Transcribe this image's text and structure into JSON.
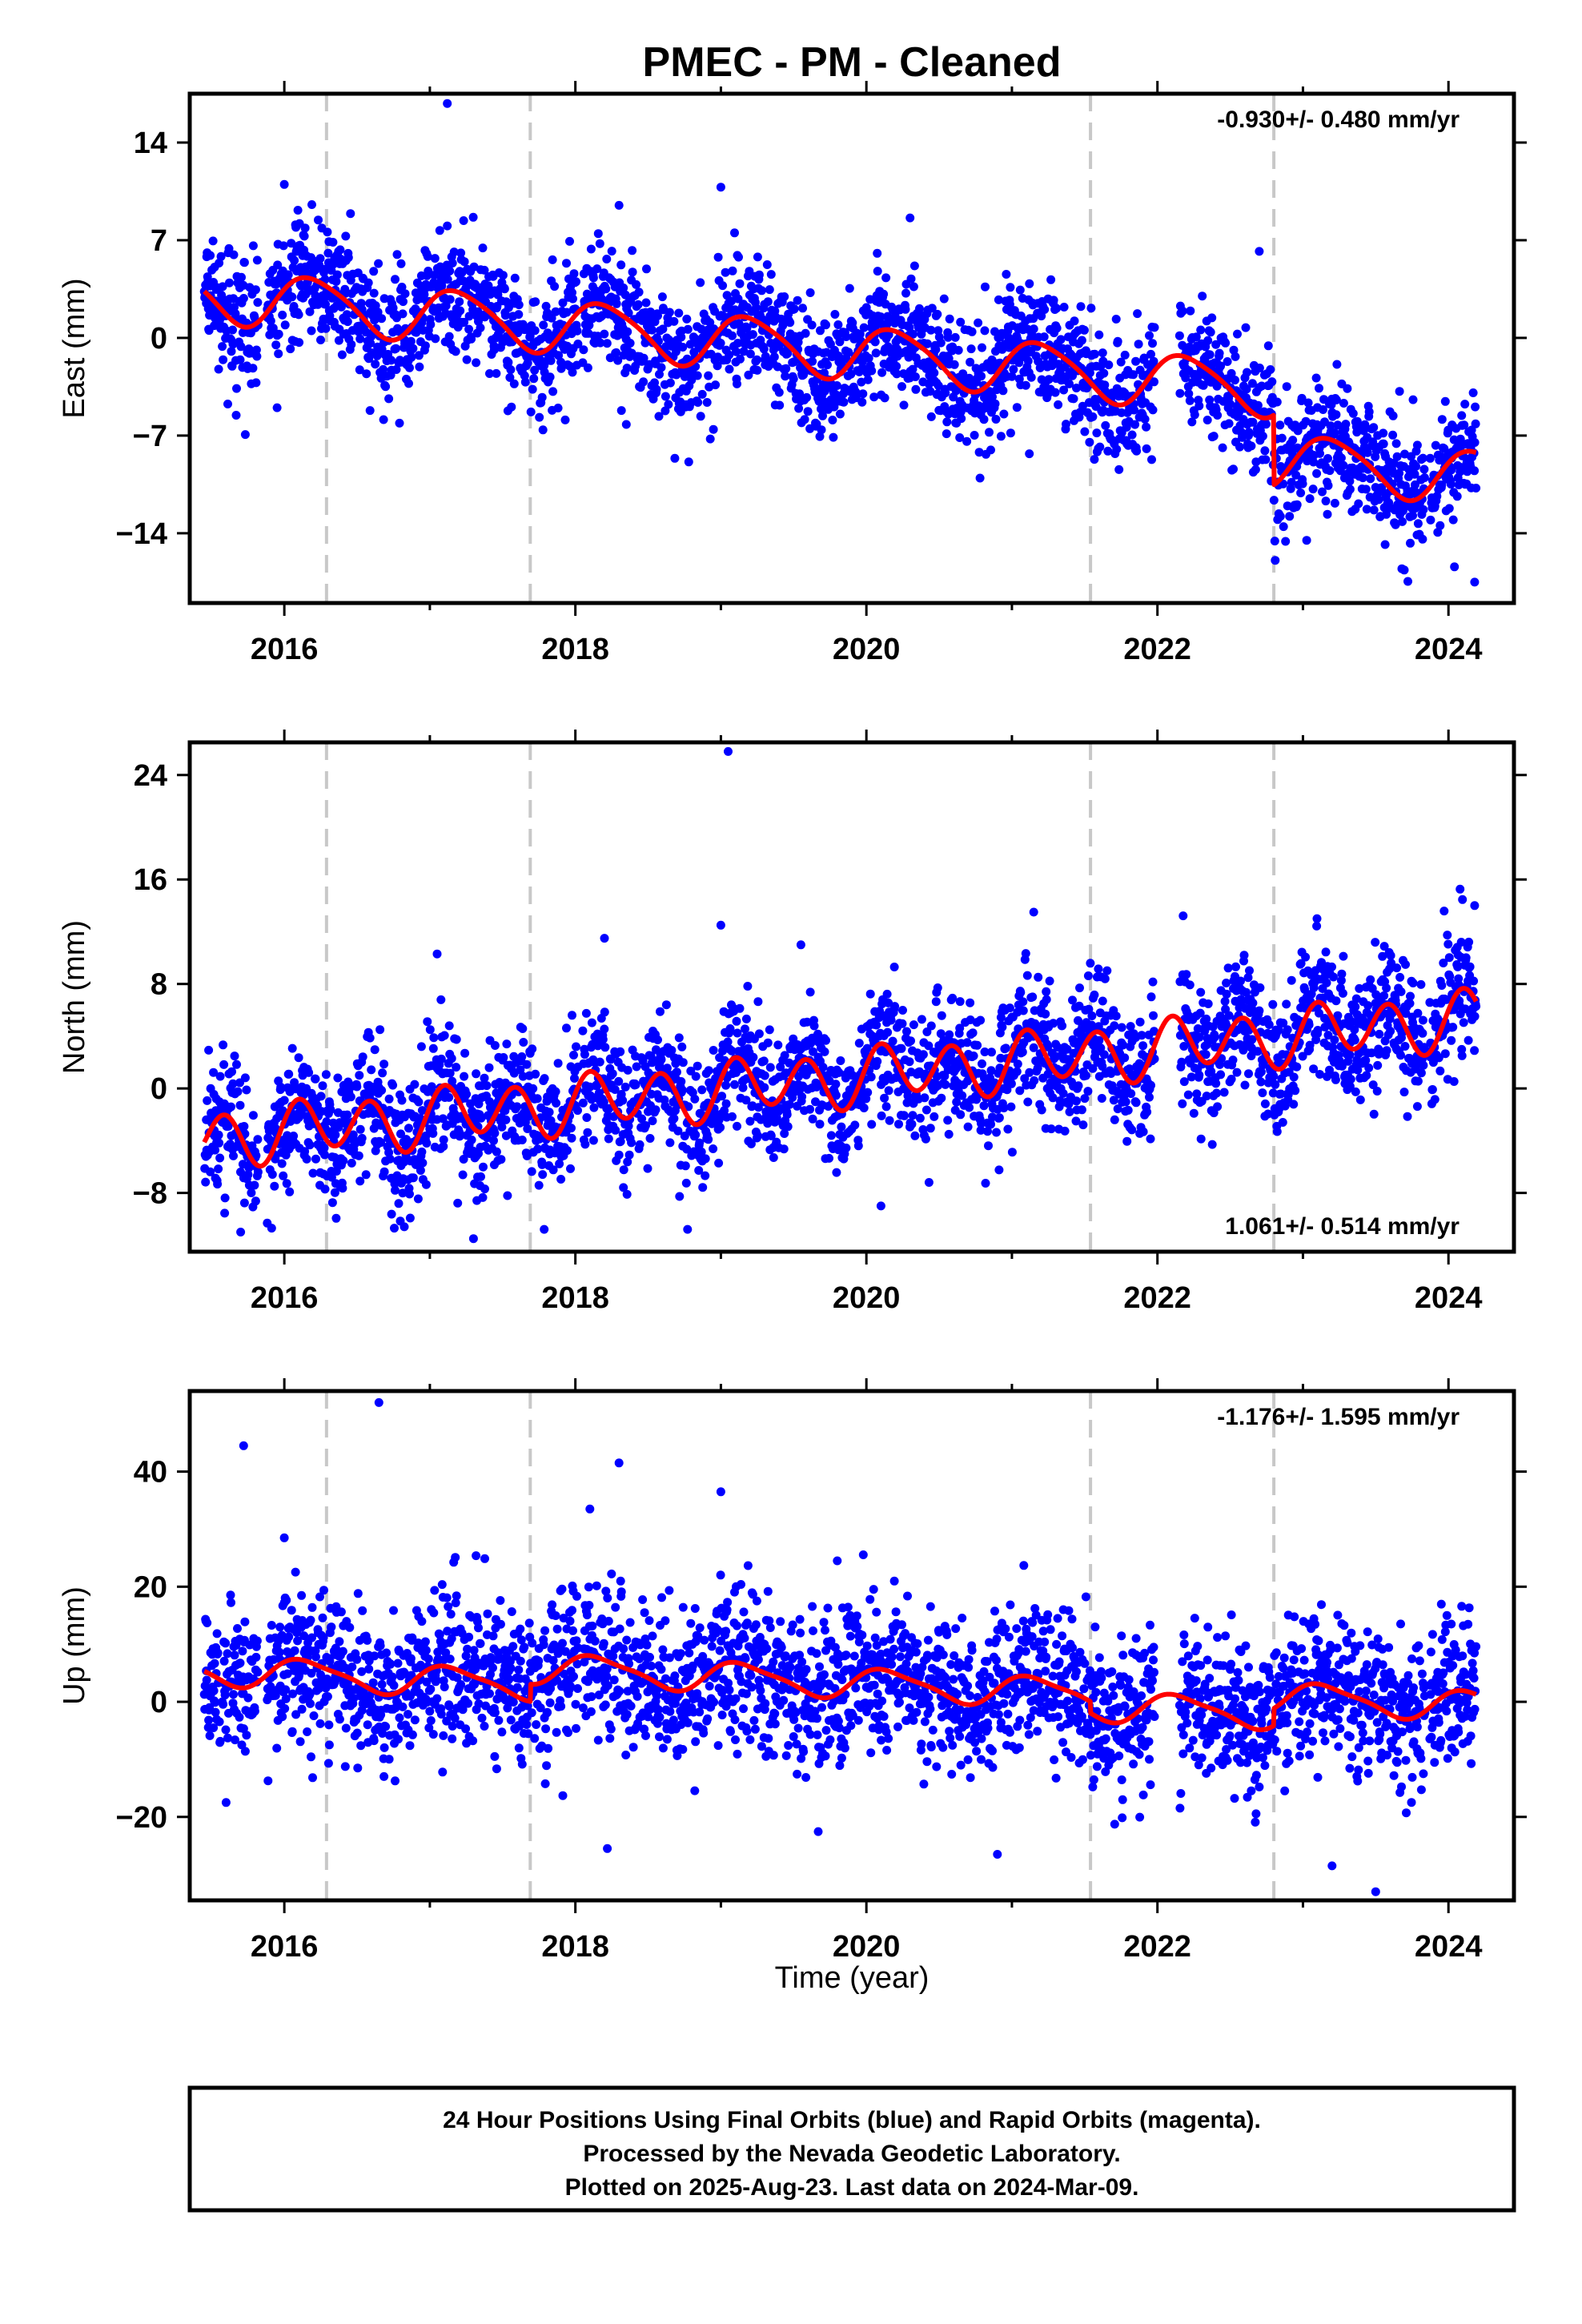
{
  "title": "PMEC  - PM - Cleaned",
  "x_axis_label": "Time (year)",
  "caption": {
    "line1": "24 Hour Positions Using Final Orbits (blue) and Rapid Orbits (magenta).",
    "line2": "Processed by the Nevada Geodetic Laboratory.",
    "line3": "Plotted on 2025-Aug-23. Last data on 2024-Mar-09."
  },
  "colors": {
    "points": "#0000ff",
    "model": "#ff0000",
    "event_lines": "#c8c8c8",
    "axes": "#000000"
  },
  "chart_data": [
    {
      "type": "scatter",
      "component": "East",
      "ylabel": "East (mm)",
      "rate_text": "-0.930+/- 0.480 mm/yr",
      "rate_position": "top-right",
      "xlim": [
        2015.35,
        2024.45
      ],
      "ylim": [
        -19,
        17.5
      ],
      "xticks": [
        2016,
        2018,
        2020,
        2022,
        2024
      ],
      "yticks": [
        -14,
        -7,
        0,
        7,
        14
      ],
      "event_lines_x": [
        2016.29,
        2017.69,
        2021.54,
        2022.8
      ],
      "data_start": 2015.45,
      "data_end": 2024.19,
      "gaps": [
        [
          2015.82,
          2015.88
        ],
        [
          2018.02,
          2018.05
        ],
        [
          2021.98,
          2022.15
        ],
        [
          2023.84,
          2023.87
        ]
      ],
      "trend": {
        "rate_mm_per_yr": -0.93,
        "value_at_2015_5": 3.1
      },
      "offsets": [
        {
          "x": 2022.8,
          "dy": -5.0
        }
      ],
      "seasonal": {
        "annual_amp": 1.9,
        "annual_phase": 0.3,
        "semiannual_amp": 0.3,
        "semiannual_phase": 1.2
      },
      "point_scatter_sigma": 2.2,
      "outliers": [
        [
          2017.12,
          16.8
        ],
        [
          2015.95,
          -5.0
        ],
        [
          2016.0,
          11.0
        ],
        [
          2018.3,
          9.5
        ],
        [
          2019.0,
          10.8
        ],
        [
          2020.3,
          8.6
        ],
        [
          2022.7,
          6.2
        ],
        [
          2024.18,
          -17.5
        ],
        [
          2021.12,
          -8.3
        ],
        [
          2018.35,
          -6.2
        ]
      ]
    },
    {
      "type": "scatter",
      "component": "North",
      "ylabel": "North (mm)",
      "rate_text": "1.061+/- 0.514 mm/yr",
      "rate_position": "bottom-right",
      "xlim": [
        2015.35,
        2024.45
      ],
      "ylim": [
        -12.5,
        26.5
      ],
      "xticks": [
        2016,
        2018,
        2020,
        2022,
        2024
      ],
      "yticks": [
        -8,
        0,
        8,
        16,
        24
      ],
      "event_lines_x": [
        2016.29,
        2017.69,
        2021.54,
        2022.8
      ],
      "data_start": 2015.45,
      "data_end": 2024.19,
      "gaps": [
        [
          2015.82,
          2015.88
        ],
        [
          2018.02,
          2018.05
        ],
        [
          2021.98,
          2022.15
        ],
        [
          2023.84,
          2023.87
        ]
      ],
      "trend": {
        "rate_mm_per_yr": 1.06,
        "value_at_2015_5": -3.8
      },
      "offsets": [],
      "seasonal": {
        "annual_amp": 0.6,
        "annual_phase": 0.0,
        "semiannual_amp": 2.0,
        "semiannual_phase": 0.4
      },
      "point_scatter_sigma": 2.5,
      "outliers": [
        [
          2019.05,
          25.8
        ],
        [
          2021.15,
          13.5
        ],
        [
          2024.18,
          14.0
        ],
        [
          2018.2,
          11.5
        ],
        [
          2019.0,
          12.5
        ],
        [
          2019.55,
          11.0
        ],
        [
          2017.05,
          10.3
        ],
        [
          2015.7,
          -11.0
        ],
        [
          2020.1,
          -9.0
        ],
        [
          2017.3,
          -11.5
        ]
      ]
    },
    {
      "type": "scatter",
      "component": "Up",
      "ylabel": "Up (mm)",
      "rate_text": "-1.176+/- 1.595 mm/yr",
      "rate_position": "top-right",
      "xlim": [
        2015.35,
        2024.45
      ],
      "ylim": [
        -34.5,
        54
      ],
      "xticks": [
        2016,
        2018,
        2020,
        2022,
        2024
      ],
      "yticks": [
        -20,
        0,
        20,
        40
      ],
      "event_lines_x": [
        2016.29,
        2017.69,
        2021.54,
        2022.8
      ],
      "data_start": 2015.45,
      "data_end": 2024.19,
      "gaps": [
        [
          2015.82,
          2015.88
        ],
        [
          2018.02,
          2018.05
        ],
        [
          2021.98,
          2022.15
        ],
        [
          2023.84,
          2023.87
        ]
      ],
      "trend": {
        "rate_mm_per_yr": -1.18,
        "value_at_2015_5": 5.5
      },
      "offsets": [
        {
          "x": 2017.69,
          "dy": 3.0
        },
        {
          "x": 2021.54,
          "dy": -2.0
        },
        {
          "x": 2022.8,
          "dy": 3.0
        }
      ],
      "seasonal": {
        "annual_amp": 2.5,
        "annual_phase": 0.6,
        "semiannual_amp": 0.6,
        "semiannual_phase": 1.5
      },
      "point_scatter_sigma": 6.5,
      "outliers": [
        [
          2016.65,
          52.0
        ],
        [
          2015.72,
          44.5
        ],
        [
          2018.3,
          41.5
        ],
        [
          2019.0,
          36.5
        ],
        [
          2018.1,
          33.5
        ],
        [
          2016.0,
          28.5
        ],
        [
          2019.8,
          24.5
        ],
        [
          2023.2,
          -28.5
        ],
        [
          2023.5,
          -33.0
        ],
        [
          2018.22,
          -25.5
        ],
        [
          2020.9,
          -26.5
        ],
        [
          2015.6,
          -17.5
        ]
      ]
    }
  ]
}
